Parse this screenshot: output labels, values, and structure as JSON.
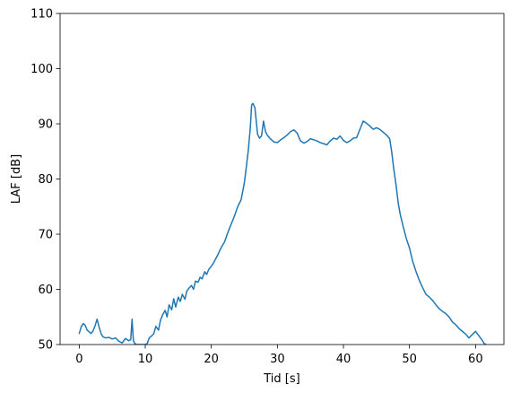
{
  "chart_data": {
    "type": "line",
    "title": "",
    "xlabel": "Tid [s]",
    "ylabel": "LAF [dB]",
    "xlim": [
      -2.9,
      64.3
    ],
    "ylim": [
      50,
      110
    ],
    "xticks": [
      0,
      10,
      20,
      30,
      40,
      50,
      60
    ],
    "yticks": [
      50,
      60,
      70,
      80,
      90,
      100,
      110
    ],
    "grid": false,
    "legend": "none",
    "series": [
      {
        "color": "#1f77b4",
        "x": [
          0,
          0.3,
          0.6,
          0.9,
          1.2,
          1.5,
          1.8,
          2.1,
          2.4,
          2.7,
          3.0,
          3.3,
          3.6,
          4.0,
          4.5,
          5.0,
          5.5,
          6.0,
          6.5,
          7.0,
          7.5,
          7.8,
          8.0,
          8.2,
          8.4,
          8.7,
          9.0,
          9.5,
          10.0,
          10.3,
          10.6,
          11.0,
          11.3,
          11.6,
          12.0,
          12.3,
          12.6,
          13.0,
          13.3,
          13.6,
          14.0,
          14.3,
          14.6,
          15.0,
          15.3,
          15.6,
          16.0,
          16.3,
          16.6,
          17.0,
          17.3,
          17.6,
          18.0,
          18.3,
          18.6,
          19.0,
          19.3,
          19.6,
          20.0,
          20.3,
          20.6,
          21.0,
          21.3,
          21.6,
          22.0,
          22.5,
          23.0,
          23.5,
          24.0,
          24.5,
          25.0,
          25.3,
          25.6,
          25.9,
          26.1,
          26.3,
          26.6,
          27.0,
          27.3,
          27.6,
          27.9,
          28.2,
          28.5,
          29.0,
          29.5,
          30.0,
          30.5,
          31.0,
          31.5,
          32.0,
          32.5,
          33.0,
          33.5,
          34.0,
          34.5,
          35.0,
          35.5,
          36.0,
          36.5,
          37.0,
          37.5,
          38.0,
          38.5,
          39.0,
          39.5,
          40.0,
          40.5,
          41.0,
          41.5,
          42.0,
          42.5,
          43.0,
          43.5,
          44.0,
          44.5,
          45.0,
          45.5,
          46.0,
          46.5,
          47.0,
          47.3,
          47.6,
          48.0,
          48.3,
          48.6,
          49.0,
          49.5,
          50.0,
          50.5,
          51.0,
          51.5,
          52.0,
          52.5,
          53.0,
          53.5,
          54.0,
          54.5,
          55.0,
          55.5,
          56.0,
          56.5,
          57.0,
          57.5,
          58.0,
          58.5,
          59.0,
          59.5,
          60.0,
          60.5,
          61.0,
          61.3,
          61.6
        ],
        "y": [
          52.0,
          53.2,
          53.8,
          53.5,
          52.6,
          52.3,
          52.0,
          52.5,
          53.4,
          54.6,
          53.2,
          52.0,
          51.4,
          51.2,
          51.3,
          51.0,
          51.2,
          50.6,
          50.3,
          51.1,
          50.7,
          50.9,
          54.6,
          50.7,
          50.2,
          50.0,
          50.0,
          50.0,
          50.0,
          50.2,
          51.2,
          51.6,
          52.0,
          53.3,
          52.6,
          54.4,
          55.3,
          56.2,
          55.0,
          57.2,
          56.3,
          58.3,
          56.8,
          58.6,
          57.8,
          59.1,
          58.2,
          59.7,
          60.2,
          60.7,
          60.0,
          61.5,
          61.3,
          62.2,
          61.9,
          63.2,
          62.7,
          63.6,
          64.2,
          64.7,
          65.4,
          66.3,
          67.1,
          67.8,
          68.6,
          70.3,
          71.8,
          73.3,
          75.0,
          76.2,
          79.3,
          82.2,
          85.2,
          89.3,
          93.4,
          93.7,
          92.9,
          88.1,
          87.4,
          87.8,
          90.5,
          88.6,
          87.9,
          87.2,
          86.7,
          86.6,
          87.1,
          87.5,
          88.0,
          88.6,
          88.9,
          88.3,
          86.9,
          86.5,
          86.8,
          87.3,
          87.1,
          86.9,
          86.6,
          86.4,
          86.2,
          86.9,
          87.4,
          87.2,
          87.8,
          87.0,
          86.6,
          86.9,
          87.4,
          87.5,
          89.0,
          90.5,
          90.1,
          89.6,
          89.0,
          89.3,
          89.0,
          88.5,
          88.0,
          87.3,
          85.0,
          82.0,
          78.6,
          75.6,
          73.6,
          71.6,
          69.3,
          67.5,
          65.0,
          63.2,
          61.6,
          60.3,
          59.1,
          58.6,
          58.0,
          57.2,
          56.5,
          56.0,
          55.6,
          55.0,
          54.1,
          53.6,
          52.9,
          52.4,
          51.9,
          51.2,
          51.8,
          52.4,
          51.6,
          50.8,
          50.2,
          50.0
        ]
      }
    ]
  }
}
